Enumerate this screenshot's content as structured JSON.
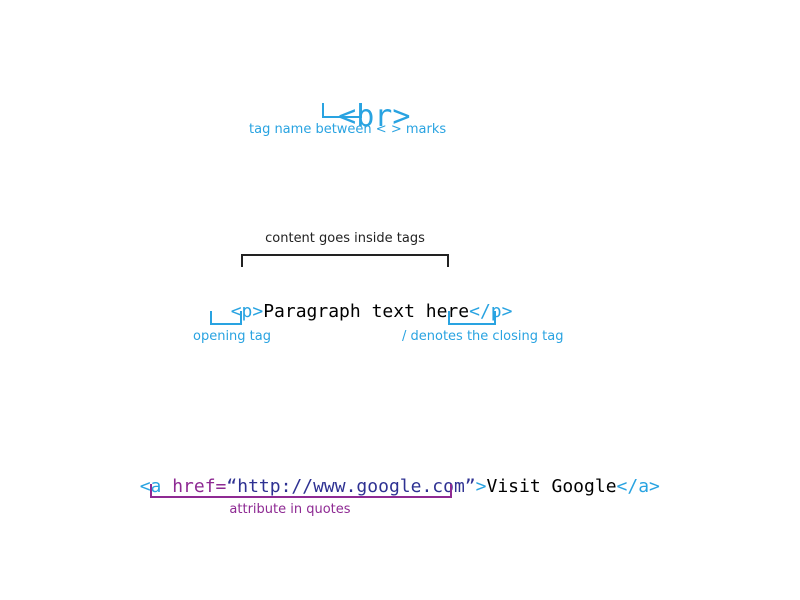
{
  "br_example": {
    "open": "<",
    "name": "br",
    "close": ">",
    "caption": "tag name between < > marks"
  },
  "p_example": {
    "top_caption": "content goes inside tags",
    "open_tag": "<p>",
    "content": "Paragraph text here",
    "close_tag": "</p>",
    "open_caption": "opening tag",
    "close_caption": "/ denotes the closing tag"
  },
  "a_example": {
    "open": "<a ",
    "attr_name": "href=",
    "attr_value": "“http://www.google.com”",
    "open_end": ">",
    "content": "Visit Google",
    "close_tag": "</a>",
    "caption": "attribute in quotes"
  },
  "colors": {
    "tag_blue": "#29a3e1",
    "attribute_purple": "#8e2a93",
    "value_navy": "#2e3192",
    "content_black": "#000000"
  }
}
